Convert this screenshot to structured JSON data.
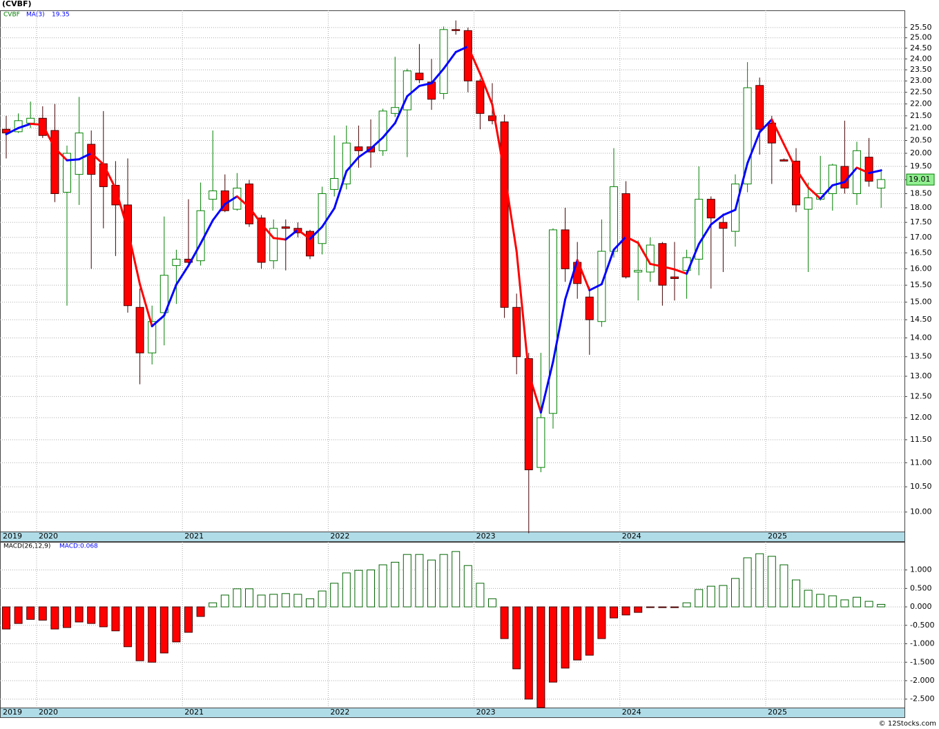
{
  "chart_data": [
    {
      "type": "candlestick",
      "title": "(CVBF)",
      "categories": [
        "2019",
        null,
        null,
        "2020",
        null,
        null,
        null,
        null,
        null,
        null,
        null,
        null,
        null,
        null,
        null,
        "2021",
        null,
        null,
        null,
        null,
        null,
        null,
        null,
        null,
        null,
        null,
        null,
        "2022",
        null,
        null,
        null,
        null,
        null,
        null,
        null,
        null,
        null,
        null,
        null,
        "2023",
        null,
        null,
        null,
        null,
        null,
        null,
        null,
        null,
        null,
        null,
        null,
        "2024",
        null,
        null,
        null,
        null,
        null,
        null,
        null,
        null,
        null,
        null,
        null,
        "2025",
        null,
        null,
        null,
        null,
        null,
        null,
        null,
        null,
        null
      ],
      "series": [
        {
          "name": "CVBF",
          "color": "#008000",
          "open": [
            20.95,
            20.85,
            21.2,
            21.4,
            20.9,
            18.55,
            19.2,
            20.35,
            19.6,
            18.8,
            18.1,
            14.85,
            13.6,
            14.7,
            16.1,
            16.3,
            16.25,
            18.3,
            18.6,
            17.95,
            18.85,
            17.65,
            16.25,
            17.35,
            17.3,
            17.2,
            16.8,
            18.65,
            18.85,
            20.25,
            20.25,
            20.1,
            21.6,
            21.75,
            23.35,
            22.95,
            22.45,
            25.4,
            25.35,
            23.0,
            21.5,
            21.25,
            14.85,
            13.45,
            10.9,
            12.1,
            17.25,
            16.2,
            15.15,
            14.45,
            16.55,
            18.5,
            15.9,
            15.9,
            16.8,
            15.75,
            15.95,
            16.3,
            18.3,
            17.5,
            17.2,
            18.85,
            22.8,
            21.2,
            19.75,
            19.7,
            17.95,
            18.3,
            18.5,
            19.5,
            18.5,
            19.85,
            18.7
          ],
          "high": [
            21.5,
            21.6,
            22.1,
            21.9,
            22.0,
            20.3,
            22.3,
            20.9,
            21.7,
            19.7,
            19.8,
            15.4,
            14.9,
            17.7,
            16.6,
            18.3,
            18.9,
            20.9,
            19.2,
            19.25,
            19.0,
            17.75,
            17.6,
            17.6,
            17.5,
            17.25,
            18.75,
            20.7,
            21.1,
            21.1,
            21.35,
            21.8,
            24.1,
            23.55,
            24.7,
            24.0,
            25.55,
            25.85,
            25.5,
            23.1,
            22.9,
            21.55,
            15.25,
            13.6,
            13.6,
            17.3,
            18.0,
            16.85,
            15.45,
            17.6,
            20.2,
            18.95,
            16.9,
            17.0,
            16.85,
            16.85,
            16.6,
            19.5,
            18.4,
            17.8,
            19.2,
            23.85,
            23.15,
            21.5,
            19.8,
            20.2,
            18.9,
            19.9,
            19.6,
            21.3,
            20.45,
            20.6,
            19.4
          ],
          "low": [
            19.8,
            20.8,
            21.0,
            20.6,
            18.2,
            14.9,
            18.1,
            16.0,
            17.3,
            16.4,
            14.7,
            12.8,
            13.3,
            13.8,
            14.95,
            16.1,
            16.1,
            17.9,
            17.85,
            17.9,
            17.35,
            16.0,
            16.0,
            15.95,
            17.0,
            16.3,
            16.45,
            18.4,
            18.65,
            19.45,
            19.45,
            19.9,
            21.45,
            19.85,
            22.9,
            21.75,
            22.2,
            25.15,
            22.5,
            20.95,
            21.15,
            14.55,
            13.05,
            9.6,
            10.8,
            11.75,
            15.6,
            15.1,
            13.55,
            14.3,
            16.35,
            15.7,
            15.05,
            15.6,
            14.9,
            15.05,
            15.1,
            15.8,
            15.4,
            15.9,
            16.7,
            18.55,
            19.95,
            18.85,
            19.7,
            17.85,
            15.9,
            18.25,
            17.9,
            18.5,
            18.1,
            18.75,
            18.0
          ],
          "close": [
            20.8,
            21.3,
            21.4,
            20.7,
            18.5,
            20.0,
            20.8,
            19.2,
            18.75,
            18.1,
            14.9,
            13.6,
            14.45,
            15.8,
            16.3,
            16.2,
            17.9,
            18.6,
            17.9,
            18.7,
            17.45,
            16.2,
            17.3,
            17.3,
            17.15,
            16.4,
            18.5,
            19.05,
            20.4,
            20.1,
            20.05,
            21.7,
            21.85,
            23.45,
            23.05,
            22.2,
            25.4,
            25.35,
            23.0,
            21.6,
            21.3,
            14.85,
            13.5,
            10.85,
            12.0,
            17.25,
            16.0,
            15.55,
            14.5,
            16.55,
            18.75,
            15.75,
            15.95,
            16.75,
            15.5,
            15.7,
            16.35,
            18.3,
            17.65,
            17.3,
            18.85,
            22.7,
            20.95,
            20.4,
            19.7,
            18.1,
            18.35,
            18.5,
            19.55,
            18.7,
            20.1,
            18.95,
            19.01
          ]
        },
        {
          "name": "MA(3)",
          "color": "#0000ff",
          "down_color": "#ff0000",
          "current": 19.35,
          "values": [
            20.75,
            21.0,
            21.17,
            21.13,
            20.2,
            19.73,
            19.77,
            20.0,
            19.58,
            18.68,
            17.25,
            15.53,
            14.32,
            14.62,
            15.52,
            16.1,
            16.8,
            17.57,
            18.13,
            18.4,
            18.02,
            17.45,
            16.98,
            16.93,
            17.25,
            16.95,
            17.35,
            17.98,
            19.32,
            19.85,
            20.18,
            20.62,
            21.2,
            22.33,
            22.78,
            22.9,
            23.55,
            24.32,
            24.58,
            23.32,
            21.97,
            19.25,
            16.55,
            13.07,
            12.12,
            13.37,
            15.08,
            16.27,
            15.35,
            15.53,
            16.6,
            17.02,
            16.82,
            16.15,
            16.07,
            15.98,
            15.85,
            16.78,
            17.43,
            17.75,
            17.93,
            19.62,
            20.83,
            21.35,
            20.35,
            19.4,
            18.72,
            18.32,
            18.8,
            18.92,
            19.45,
            19.25,
            19.35
          ]
        }
      ],
      "down_color": "#ff0000",
      "ylim": [
        9.63,
        26.36
      ],
      "log_scale": true,
      "grid": true,
      "yticks": [
        {
          "value": 10,
          "label": "10.00"
        },
        {
          "value": 10.5,
          "label": "10.50"
        },
        {
          "value": 11,
          "label": "11.00"
        },
        {
          "value": 11.5,
          "label": "11.50"
        },
        {
          "value": 12,
          "label": "12.00"
        },
        {
          "value": 12.5,
          "label": "12.50"
        },
        {
          "value": 13,
          "label": "13.00"
        },
        {
          "value": 13.5,
          "label": "13.50"
        },
        {
          "value": 14,
          "label": "14.00"
        },
        {
          "value": 14.5,
          "label": "14.50"
        },
        {
          "value": 15,
          "label": "15.00"
        },
        {
          "value": 15.5,
          "label": "15.50"
        },
        {
          "value": 16,
          "label": "16.00"
        },
        {
          "value": 16.5,
          "label": "16.50"
        },
        {
          "value": 17,
          "label": "17.00"
        },
        {
          "value": 17.5,
          "label": "17.50"
        },
        {
          "value": 18,
          "label": "18.00"
        },
        {
          "value": 18.5,
          "label": "18.50"
        },
        {
          "value": 19,
          "label": "19.00"
        },
        {
          "value": 19.5,
          "label": "19.50"
        },
        {
          "value": 20,
          "label": "20.00"
        },
        {
          "value": 20.5,
          "label": "20.50"
        },
        {
          "value": 21,
          "label": "21.00"
        },
        {
          "value": 21.5,
          "label": "21.50"
        },
        {
          "value": 22,
          "label": "22.00"
        },
        {
          "value": 22.5,
          "label": "22.50"
        },
        {
          "value": 23,
          "label": "23.00"
        },
        {
          "value": 23.5,
          "label": "23.50"
        },
        {
          "value": 24,
          "label": "24.00"
        },
        {
          "value": 24.5,
          "label": "24.50"
        },
        {
          "value": 25,
          "label": "25.00"
        },
        {
          "value": 25.5,
          "label": "25.50"
        }
      ]
    },
    {
      "type": "bar",
      "title": "MACD(26,12,9)",
      "value_label": "MACD:0.068",
      "categories": [
        "2019",
        null,
        null,
        "2020",
        null,
        null,
        null,
        null,
        null,
        null,
        null,
        null,
        null,
        null,
        null,
        "2021",
        null,
        null,
        null,
        null,
        null,
        null,
        null,
        null,
        null,
        null,
        null,
        "2022",
        null,
        null,
        null,
        null,
        null,
        null,
        null,
        null,
        null,
        null,
        null,
        "2023",
        null,
        null,
        null,
        null,
        null,
        null,
        null,
        null,
        null,
        null,
        null,
        "2024",
        null,
        null,
        null,
        null,
        null,
        null,
        null,
        null,
        null,
        null,
        null,
        "2025",
        null,
        null,
        null,
        null,
        null,
        null,
        null,
        null,
        null
      ],
      "values": [
        -0.6,
        -0.45,
        -0.34,
        -0.36,
        -0.6,
        -0.56,
        -0.41,
        -0.45,
        -0.54,
        -0.65,
        -1.08,
        -1.46,
        -1.5,
        -1.25,
        -0.95,
        -0.69,
        -0.26,
        0.11,
        0.32,
        0.49,
        0.49,
        0.32,
        0.34,
        0.36,
        0.34,
        0.22,
        0.43,
        0.64,
        0.92,
        0.99,
        1.0,
        1.14,
        1.21,
        1.42,
        1.42,
        1.27,
        1.42,
        1.5,
        1.12,
        0.64,
        0.22,
        -0.86,
        -1.68,
        -2.5,
        -2.73,
        -2.04,
        -1.66,
        -1.44,
        -1.31,
        -0.86,
        -0.3,
        -0.22,
        -0.15,
        -0.01,
        -0.02,
        -0.02,
        0.11,
        0.47,
        0.56,
        0.58,
        0.77,
        1.33,
        1.44,
        1.37,
        1.14,
        0.73,
        0.45,
        0.34,
        0.3,
        0.19,
        0.26,
        0.15,
        0.068
      ],
      "color": "#006400",
      "down_color": "#ff0000",
      "ylim": [
        -2.73,
        1.76
      ],
      "grid": true,
      "yticks": [
        {
          "value": -2.5,
          "label": "-2.500"
        },
        {
          "value": -2,
          "label": "-2.000"
        },
        {
          "value": -1.5,
          "label": "-1.500"
        },
        {
          "value": -1,
          "label": "-1.000"
        },
        {
          "value": -0.5,
          "label": "-0.500"
        },
        {
          "value": 0,
          "label": "0.000"
        },
        {
          "value": 0.5,
          "label": "0.500"
        },
        {
          "value": 1,
          "label": "1.000"
        }
      ]
    }
  ],
  "footer": "© 12Stocks.com"
}
